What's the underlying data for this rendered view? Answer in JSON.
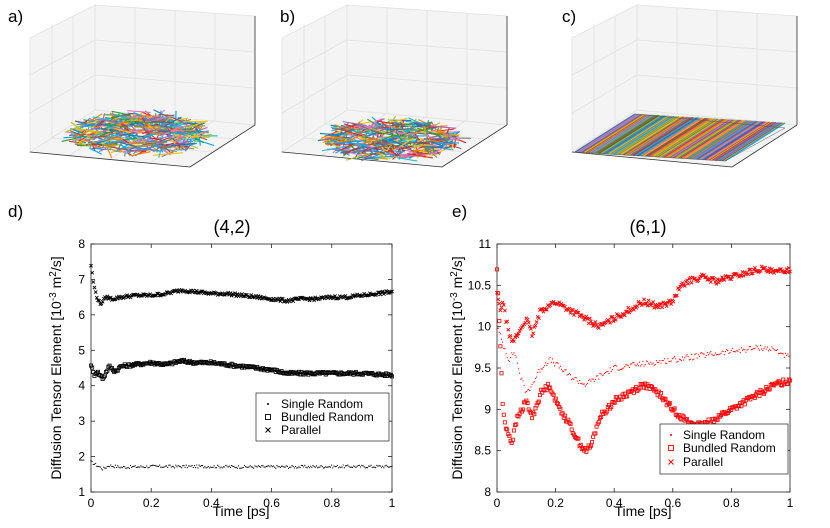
{
  "panels": {
    "a": {
      "label": "a)"
    },
    "b": {
      "label": "b)"
    },
    "c": {
      "label": "c)"
    }
  },
  "chart_data": [
    {
      "id": "d",
      "panel_label": "d)",
      "type": "scatter",
      "title": "(4,2)",
      "xlabel": "Time [ps]",
      "ylabel": "Diffusion Tensor Element [10-3 m2/s]",
      "ylabel_parts": {
        "main": "Diffusion Tensor Element [10",
        "sup1": "-3",
        "mid": " m",
        "sup2": "2",
        "end": "/s]"
      },
      "xlim": [
        0,
        1
      ],
      "ylim": [
        1,
        8
      ],
      "xticks": [
        0,
        0.2,
        0.4,
        0.6,
        0.8,
        1
      ],
      "xtick_labels": [
        "0",
        "0.2",
        "0.4",
        "0.6",
        "0.8",
        "1"
      ],
      "yticks": [
        1,
        2,
        3,
        4,
        5,
        6,
        7,
        8
      ],
      "ytick_labels": [
        "1",
        "2",
        "3",
        "4",
        "5",
        "6",
        "7",
        "8"
      ],
      "color": "#000000",
      "legend_position": "lower-right",
      "series": [
        {
          "name": "Single Random",
          "marker": "dot",
          "x": [
            0,
            0.02,
            0.04,
            0.06,
            0.1,
            0.2,
            0.3,
            0.4,
            0.5,
            0.6,
            0.7,
            0.8,
            0.9,
            1.0
          ],
          "y": [
            1.85,
            1.75,
            1.65,
            1.75,
            1.7,
            1.72,
            1.72,
            1.72,
            1.71,
            1.71,
            1.71,
            1.72,
            1.72,
            1.72
          ]
        },
        {
          "name": "Bundled Random",
          "marker": "square",
          "x": [
            0,
            0.01,
            0.02,
            0.04,
            0.06,
            0.08,
            0.1,
            0.15,
            0.2,
            0.25,
            0.3,
            0.35,
            0.4,
            0.5,
            0.6,
            0.65,
            0.7,
            0.8,
            0.9,
            1.0
          ],
          "y": [
            4.6,
            4.3,
            4.4,
            4.2,
            4.55,
            4.4,
            4.55,
            4.6,
            4.65,
            4.6,
            4.7,
            4.65,
            4.65,
            4.55,
            4.45,
            4.35,
            4.35,
            4.35,
            4.35,
            4.3
          ]
        },
        {
          "name": "Parallel",
          "marker": "x",
          "x": [
            0,
            0.01,
            0.02,
            0.03,
            0.05,
            0.07,
            0.1,
            0.15,
            0.2,
            0.25,
            0.3,
            0.35,
            0.4,
            0.45,
            0.5,
            0.55,
            0.6,
            0.65,
            0.7,
            0.75,
            0.8,
            0.85,
            0.9,
            0.95,
            1.0
          ],
          "y": [
            7.4,
            6.8,
            6.5,
            6.3,
            6.5,
            6.45,
            6.5,
            6.55,
            6.55,
            6.6,
            6.7,
            6.65,
            6.6,
            6.6,
            6.55,
            6.5,
            6.45,
            6.4,
            6.45,
            6.45,
            6.5,
            6.5,
            6.55,
            6.6,
            6.65
          ]
        }
      ]
    },
    {
      "id": "e",
      "panel_label": "e)",
      "type": "scatter",
      "title": "(6,1)",
      "xlabel": "Time [ps]",
      "ylabel": "Diffusion Tensor Element [10-3 m2/s]",
      "ylabel_parts": {
        "main": "Diffusion Tensor Element [10",
        "sup1": "-3",
        "mid": " m",
        "sup2": "2",
        "end": "/s]"
      },
      "xlim": [
        0,
        1
      ],
      "ylim": [
        8,
        11
      ],
      "xticks": [
        0,
        0.2,
        0.4,
        0.6,
        0.8,
        1
      ],
      "xtick_labels": [
        "0",
        "0.2",
        "0.4",
        "0.6",
        "0.8",
        "1"
      ],
      "yticks": [
        8,
        8.5,
        9,
        9.5,
        10,
        10.5,
        11
      ],
      "ytick_labels": [
        "8",
        "8.5",
        "9",
        "9.5",
        "10",
        "10.5",
        "11"
      ],
      "color": "#ff0000",
      "legend_position": "lower-right",
      "series": [
        {
          "name": "Single Random",
          "marker": "dot",
          "x": [
            0,
            0.02,
            0.04,
            0.06,
            0.08,
            0.1,
            0.12,
            0.15,
            0.18,
            0.2,
            0.25,
            0.3,
            0.35,
            0.4,
            0.5,
            0.6,
            0.7,
            0.8,
            0.9,
            0.95,
            1.0
          ],
          "y": [
            10.0,
            9.8,
            9.6,
            9.7,
            9.4,
            9.2,
            9.3,
            9.5,
            9.6,
            9.55,
            9.4,
            9.3,
            9.4,
            9.5,
            9.55,
            9.6,
            9.65,
            9.7,
            9.75,
            9.72,
            9.62
          ]
        },
        {
          "name": "Bundled Random",
          "marker": "square",
          "x": [
            0,
            0.01,
            0.02,
            0.03,
            0.05,
            0.07,
            0.1,
            0.12,
            0.15,
            0.18,
            0.2,
            0.25,
            0.28,
            0.3,
            0.32,
            0.35,
            0.4,
            0.45,
            0.5,
            0.55,
            0.6,
            0.65,
            0.7,
            0.75,
            0.8,
            0.85,
            0.9,
            0.95,
            1.0
          ],
          "y": [
            10.7,
            9.9,
            9.0,
            8.8,
            8.6,
            8.9,
            9.1,
            8.9,
            9.2,
            9.3,
            9.1,
            8.8,
            8.6,
            8.5,
            8.55,
            8.9,
            9.1,
            9.2,
            9.3,
            9.2,
            9.0,
            8.85,
            8.8,
            8.9,
            9.0,
            9.1,
            9.2,
            9.3,
            9.35
          ]
        },
        {
          "name": "Parallel",
          "marker": "x",
          "x": [
            0,
            0.01,
            0.02,
            0.03,
            0.05,
            0.07,
            0.1,
            0.12,
            0.15,
            0.2,
            0.25,
            0.3,
            0.35,
            0.4,
            0.45,
            0.5,
            0.55,
            0.6,
            0.62,
            0.65,
            0.7,
            0.75,
            0.8,
            0.85,
            0.9,
            0.95,
            1.0
          ],
          "y": [
            10.4,
            10.2,
            10.3,
            10.1,
            9.8,
            9.9,
            10.1,
            9.9,
            10.2,
            10.3,
            10.2,
            10.1,
            10.0,
            10.1,
            10.2,
            10.3,
            10.25,
            10.3,
            10.45,
            10.55,
            10.6,
            10.55,
            10.6,
            10.65,
            10.7,
            10.65,
            10.7
          ]
        }
      ]
    }
  ]
}
